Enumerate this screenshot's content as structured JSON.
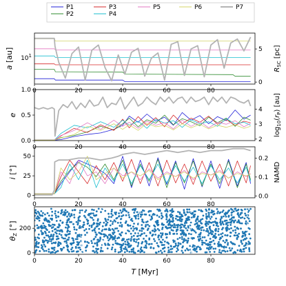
{
  "chart_data": [
    {
      "type": "line",
      "ylabel": "a [au]",
      "y_scale": "log",
      "right_ylabel": "R_SC [pc]",
      "xlim": [
        0,
        100
      ],
      "x_ticks": [
        "0",
        "20",
        "40",
        "60",
        "80"
      ],
      "y_tick_label": "10^1",
      "right_ylim": [
        -0.3,
        7.4
      ],
      "right_ticks": [
        "0",
        "5"
      ],
      "series": [
        {
          "name": "P1",
          "color": "#1f1fd8",
          "x": [
            0,
            9,
            9.5,
            40,
            41,
            98
          ],
          "y": [
            2.7,
            2.7,
            2.5,
            2.5,
            2.3,
            2.3
          ]
        },
        {
          "name": "P2",
          "color": "#2e8b2e",
          "x": [
            0,
            9,
            9.5,
            40,
            41,
            90,
            91,
            98
          ],
          "y": [
            4.6,
            4.6,
            4.0,
            3.9,
            3.5,
            3.4,
            3.1,
            3.1
          ]
        },
        {
          "name": "P3",
          "color": "#d62728",
          "x": [
            0,
            9,
            9.5,
            98
          ],
          "y": [
            6.2,
            6.2,
            5.9,
            5.9
          ]
        },
        {
          "name": "P4",
          "color": "#17becf",
          "x": [
            0,
            9,
            9.5,
            98
          ],
          "y": [
            9.7,
            9.7,
            8.9,
            8.9
          ]
        },
        {
          "name": "P5",
          "color": "#e377c2",
          "x": [
            0,
            9,
            9.5,
            98
          ],
          "y": [
            14.5,
            14.5,
            13.6,
            13.6
          ]
        },
        {
          "name": "P6",
          "color": "#d4d466",
          "x": [
            0,
            9,
            9.5,
            98
          ],
          "y": [
            25.5,
            25.5,
            22.5,
            22.5
          ]
        }
      ],
      "p7_right": {
        "x": [
          0,
          3,
          6,
          9,
          9.3,
          11,
          14,
          17,
          20,
          23,
          26,
          29,
          32,
          35,
          38,
          41,
          44,
          47,
          50,
          53,
          56,
          59,
          62,
          65,
          68,
          71,
          74,
          77,
          80,
          83,
          86,
          89,
          92,
          95,
          98
        ],
        "y": [
          6.6,
          6.6,
          6.6,
          6.6,
          5.4,
          3.0,
          0.6,
          4.3,
          5.3,
          0.3,
          4.8,
          5.6,
          2.2,
          0.2,
          4.1,
          1.2,
          4.5,
          5.1,
          0.9,
          3.6,
          4.4,
          0.3,
          5.7,
          6.1,
          1.0,
          5.0,
          5.5,
          0.8,
          5.6,
          6.4,
          2.1,
          5.9,
          6.5,
          4.7,
          6.8
        ]
      }
    },
    {
      "type": "line",
      "ylabel": "e",
      "right_ylabel": "log10(r_p) [au]",
      "xlim": [
        0,
        100
      ],
      "ylim": [
        0,
        1.0
      ],
      "x_ticks": [
        "0",
        "20",
        "40",
        "60",
        "80"
      ],
      "y_ticks": [
        "0.0",
        "0.5",
        "1.0"
      ],
      "right_ylim": [
        1.9,
        5.3
      ],
      "right_ticks": [
        "2",
        "3",
        "4"
      ],
      "series": [
        {
          "name": "P1",
          "color": "#1f1fd8",
          "x": [
            0,
            9,
            12,
            18,
            24,
            30,
            36,
            40,
            43,
            47,
            51,
            55,
            59,
            63,
            67,
            71,
            75,
            79,
            83,
            87,
            91,
            95,
            98
          ],
          "y": [
            0.01,
            0.01,
            0.02,
            0.08,
            0.12,
            0.15,
            0.22,
            0.3,
            0.48,
            0.36,
            0.52,
            0.38,
            0.46,
            0.3,
            0.55,
            0.4,
            0.49,
            0.33,
            0.47,
            0.39,
            0.6,
            0.42,
            0.5
          ]
        },
        {
          "name": "P2",
          "color": "#2e8b2e",
          "x": [
            0,
            9,
            12,
            18,
            24,
            30,
            36,
            40,
            43,
            47,
            51,
            55,
            59,
            63,
            67,
            71,
            75,
            79,
            83,
            87,
            91,
            95,
            98
          ],
          "y": [
            0.01,
            0.01,
            0.06,
            0.1,
            0.17,
            0.28,
            0.21,
            0.33,
            0.44,
            0.27,
            0.41,
            0.34,
            0.5,
            0.31,
            0.43,
            0.37,
            0.29,
            0.46,
            0.35,
            0.44,
            0.28,
            0.46,
            0.4
          ]
        },
        {
          "name": "P3",
          "color": "#d62728",
          "x": [
            0,
            9,
            12,
            18,
            24,
            30,
            36,
            40,
            43,
            47,
            51,
            55,
            59,
            63,
            67,
            71,
            75,
            79,
            83,
            87,
            91,
            95,
            98
          ],
          "y": [
            0.01,
            0.01,
            0.09,
            0.24,
            0.16,
            0.31,
            0.2,
            0.42,
            0.25,
            0.47,
            0.3,
            0.45,
            0.27,
            0.5,
            0.33,
            0.44,
            0.36,
            0.48,
            0.32,
            0.41,
            0.3,
            0.38,
            0.35
          ]
        },
        {
          "name": "P4",
          "color": "#17becf",
          "x": [
            0,
            9,
            12,
            18,
            24,
            30,
            36,
            40,
            43,
            47,
            51,
            55,
            59,
            63,
            67,
            71,
            75,
            79,
            83,
            87,
            91,
            95,
            98
          ],
          "y": [
            0.01,
            0.01,
            0.14,
            0.3,
            0.25,
            0.37,
            0.26,
            0.4,
            0.3,
            0.38,
            0.24,
            0.42,
            0.34,
            0.39,
            0.26,
            0.41,
            0.33,
            0.37,
            0.28,
            0.43,
            0.33,
            0.36,
            0.3
          ]
        },
        {
          "name": "P5",
          "color": "#e377c2",
          "x": [
            0,
            9,
            12,
            18,
            24,
            30,
            36,
            40,
            43,
            47,
            51,
            55,
            59,
            63,
            67,
            71,
            75,
            79,
            83,
            87,
            91,
            95,
            98
          ],
          "y": [
            0.01,
            0.01,
            0.1,
            0.2,
            0.35,
            0.22,
            0.4,
            0.28,
            0.36,
            0.24,
            0.38,
            0.3,
            0.35,
            0.23,
            0.4,
            0.28,
            0.37,
            0.25,
            0.36,
            0.32,
            0.39,
            0.27,
            0.34
          ]
        },
        {
          "name": "P6",
          "color": "#d4d466",
          "x": [
            0,
            9,
            12,
            18,
            24,
            30,
            36,
            40,
            43,
            47,
            51,
            55,
            59,
            63,
            67,
            71,
            75,
            79,
            83,
            87,
            91,
            95,
            98
          ],
          "y": [
            0.01,
            0.01,
            0.05,
            0.12,
            0.28,
            0.2,
            0.33,
            0.22,
            0.31,
            0.2,
            0.34,
            0.27,
            0.3,
            0.21,
            0.33,
            0.25,
            0.32,
            0.23,
            0.3,
            0.26,
            0.31,
            0.24,
            0.28
          ]
        }
      ],
      "p7_right": {
        "x": [
          0,
          2,
          4,
          6,
          8,
          9,
          9.3,
          11,
          13,
          15,
          17,
          19,
          21,
          23,
          25,
          27,
          29,
          31,
          33,
          35,
          37,
          39,
          41,
          43,
          45,
          47,
          49,
          51,
          53,
          55,
          57,
          59,
          61,
          63,
          65,
          67,
          69,
          71,
          73,
          75,
          77,
          79,
          81,
          83,
          85,
          87,
          89,
          91,
          93,
          95,
          97,
          98
        ],
        "y": [
          4.1,
          4.0,
          4.1,
          4.0,
          4.1,
          4.0,
          2.2,
          3.9,
          4.3,
          4.1,
          4.5,
          4.0,
          4.4,
          4.1,
          4.6,
          4.2,
          4.3,
          4.8,
          4.1,
          4.4,
          4.3,
          4.8,
          4.0,
          4.4,
          4.8,
          4.2,
          4.4,
          4.8,
          4.5,
          4.3,
          4.8,
          4.5,
          4.8,
          4.4,
          4.7,
          4.8,
          4.4,
          4.8,
          4.5,
          4.6,
          4.8,
          4.3,
          4.8,
          4.5,
          4.8,
          4.4,
          4.8,
          4.7,
          4.5,
          4.4,
          4.6,
          4.2
        ]
      }
    },
    {
      "type": "line",
      "ylabel": "i [°]",
      "right_ylabel": "NAMD",
      "xlim": [
        0,
        100
      ],
      "ylim": [
        -3,
        62
      ],
      "x_ticks": [
        "0",
        "20",
        "40",
        "60",
        "80"
      ],
      "y_ticks": [
        "0",
        "25",
        "50"
      ],
      "right_ylim": [
        -0.01,
        0.26
      ],
      "right_ticks": [
        "0.0",
        "0.1",
        "0.2"
      ],
      "series": [
        {
          "name": "P1",
          "color": "#1f1fd8",
          "x": [
            0,
            9,
            12,
            16,
            20,
            24,
            28,
            32,
            36,
            40,
            44,
            48,
            52,
            56,
            60,
            64,
            68,
            72,
            76,
            80,
            84,
            88,
            92,
            96,
            98
          ],
          "y": [
            2,
            2,
            15,
            30,
            45,
            40,
            35,
            28,
            15,
            50,
            10,
            45,
            12,
            48,
            14,
            44,
            8,
            47,
            11,
            44,
            9,
            46,
            12,
            42,
            15
          ]
        },
        {
          "name": "P2",
          "color": "#2e8b2e",
          "x": [
            0,
            9,
            12,
            16,
            20,
            24,
            28,
            32,
            36,
            40,
            44,
            48,
            52,
            56,
            60,
            64,
            68,
            72,
            76,
            80,
            84,
            88,
            92,
            96,
            98
          ],
          "y": [
            2,
            2,
            18,
            32,
            42,
            36,
            24,
            40,
            20,
            45,
            12,
            40,
            18,
            46,
            10,
            42,
            16,
            44,
            12,
            40,
            15,
            44,
            10,
            40,
            20
          ]
        },
        {
          "name": "P3",
          "color": "#d62728",
          "x": [
            0,
            9,
            12,
            16,
            20,
            24,
            28,
            32,
            36,
            40,
            44,
            48,
            52,
            56,
            60,
            64,
            68,
            72,
            76,
            80,
            84,
            88,
            92,
            96,
            98
          ],
          "y": [
            2,
            2,
            24,
            45,
            30,
            15,
            38,
            20,
            42,
            18,
            46,
            15,
            42,
            12,
            45,
            16,
            40,
            14,
            44,
            18,
            40,
            12,
            44,
            16,
            38
          ]
        },
        {
          "name": "P4",
          "color": "#17becf",
          "x": [
            0,
            9,
            12,
            16,
            20,
            24,
            28,
            32,
            36,
            40,
            44,
            48,
            52,
            56,
            60,
            64,
            68,
            72,
            76,
            80,
            84,
            88,
            92,
            96,
            98
          ],
          "y": [
            2,
            2,
            10,
            40,
            20,
            45,
            10,
            35,
            18,
            40,
            15,
            38,
            20,
            40,
            16,
            38,
            18,
            36,
            15,
            38,
            20,
            35,
            16,
            36,
            18
          ]
        },
        {
          "name": "P5",
          "color": "#e377c2",
          "x": [
            0,
            9,
            12,
            16,
            20,
            24,
            28,
            32,
            36,
            40,
            44,
            48,
            52,
            56,
            60,
            64,
            68,
            72,
            76,
            80,
            84,
            88,
            92,
            96,
            98
          ],
          "y": [
            2,
            2,
            30,
            15,
            45,
            25,
            30,
            15,
            35,
            25,
            30,
            20,
            34,
            22,
            30,
            24,
            32,
            20,
            30,
            26,
            32,
            22,
            30,
            24,
            28
          ]
        },
        {
          "name": "P6",
          "color": "#d4d466",
          "x": [
            0,
            9,
            12,
            16,
            20,
            24,
            28,
            32,
            36,
            40,
            44,
            48,
            52,
            56,
            60,
            64,
            68,
            72,
            76,
            80,
            84,
            88,
            92,
            96,
            98
          ],
          "y": [
            2,
            2,
            35,
            20,
            30,
            50,
            20,
            28,
            35,
            22,
            30,
            25,
            32,
            20,
            28,
            24,
            30,
            22,
            28,
            26,
            30,
            22,
            28,
            25,
            27
          ]
        }
      ],
      "p7_right": {
        "x": [
          0,
          8,
          9,
          9.2,
          11,
          15,
          20,
          25,
          30,
          35,
          38,
          40,
          45,
          50,
          55,
          60,
          65,
          70,
          75,
          80,
          85,
          90,
          95,
          98
        ],
        "y": [
          0.005,
          0.005,
          0.03,
          0.18,
          0.19,
          0.19,
          0.2,
          0.2,
          0.19,
          0.2,
          0.21,
          0.22,
          0.23,
          0.22,
          0.23,
          0.24,
          0.23,
          0.24,
          0.23,
          0.24,
          0.24,
          0.25,
          0.25,
          0.24
        ]
      }
    },
    {
      "type": "scatter",
      "xlabel": "T [Myr]",
      "ylabel": "θ_Z [°]",
      "xlim": [
        0,
        100
      ],
      "ylim": [
        -12,
        375
      ],
      "x_ticks": [
        "0",
        "20",
        "40",
        "60",
        "80"
      ],
      "y_ticks": [
        "0",
        "200"
      ],
      "point_color": "#1f77b4",
      "x_range": [
        0,
        98
      ],
      "y_range": [
        0,
        360
      ],
      "gap_x_values": [
        21.5,
        31,
        47.5,
        71,
        96.5
      ]
    }
  ]
}
